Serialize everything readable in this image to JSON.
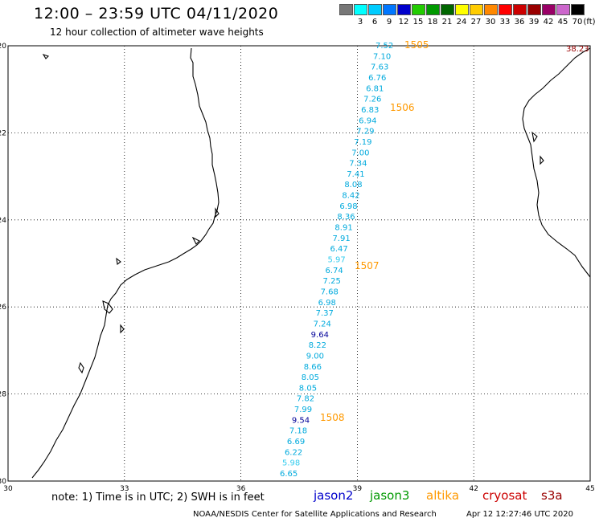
{
  "header": {
    "title": "12:00 – 23:59 UTC 04/11/2020",
    "subtitle": "12 hour collection of altimeter wave heights"
  },
  "legend": {
    "swatches": [
      {
        "color": "#777777",
        "label": ""
      },
      {
        "color": "#00ffff",
        "label": "3"
      },
      {
        "color": "#00ccff",
        "label": "6"
      },
      {
        "color": "#0077ff",
        "label": "9"
      },
      {
        "color": "#0000cc",
        "label": "12"
      },
      {
        "color": "#22cc00",
        "label": "15"
      },
      {
        "color": "#009900",
        "label": "18"
      },
      {
        "color": "#006600",
        "label": "21"
      },
      {
        "color": "#ffff00",
        "label": "24"
      },
      {
        "color": "#ffcc00",
        "label": "27"
      },
      {
        "color": "#ff8800",
        "label": "30"
      },
      {
        "color": "#ff0000",
        "label": "33"
      },
      {
        "color": "#cc0000",
        "label": "36"
      },
      {
        "color": "#990000",
        "label": "39"
      },
      {
        "color": "#990066",
        "label": "42"
      },
      {
        "color": "#cc66cc",
        "label": "45"
      },
      {
        "color": "#000000",
        "label": "70"
      }
    ],
    "unit": "(ft)"
  },
  "map": {
    "lon_ticks": [
      "30",
      "33",
      "36",
      "39",
      "42",
      "45"
    ],
    "lat_ticks": [
      "-20",
      "-22",
      "-24",
      "-26",
      "-28",
      "-30"
    ],
    "lon_range": [
      30,
      45
    ],
    "lat_range": [
      -20,
      -30
    ],
    "corner_value": {
      "text": "38.23",
      "color": "#990000"
    },
    "passes": [
      {
        "label": "1505",
        "lat": -20.0
      },
      {
        "label": "1506",
        "lat": -21.4
      },
      {
        "label": "1507",
        "lat": -25.1
      },
      {
        "label": "1508",
        "lat": -28.6
      }
    ],
    "wave_heights": [
      {
        "value": "7.52",
        "color": "#00aadd"
      },
      {
        "value": "7.10",
        "color": "#00aadd"
      },
      {
        "value": "7.63",
        "color": "#00aadd"
      },
      {
        "value": "6.76",
        "color": "#00aadd"
      },
      {
        "value": "6.81",
        "color": "#00aadd"
      },
      {
        "value": "7.26",
        "color": "#00aadd"
      },
      {
        "value": "6.83",
        "color": "#00aadd"
      },
      {
        "value": "6.94",
        "color": "#00aadd"
      },
      {
        "value": "7.29",
        "color": "#00aadd"
      },
      {
        "value": "7.19",
        "color": "#00aadd"
      },
      {
        "value": "7.00",
        "color": "#00aadd"
      },
      {
        "value": "7.34",
        "color": "#00aadd"
      },
      {
        "value": "7.41",
        "color": "#00aadd"
      },
      {
        "value": "8.08",
        "color": "#00aadd"
      },
      {
        "value": "8.42",
        "color": "#00aadd"
      },
      {
        "value": "6.98",
        "color": "#00aadd"
      },
      {
        "value": "8.36",
        "color": "#00aadd"
      },
      {
        "value": "8.91",
        "color": "#00aadd"
      },
      {
        "value": "7.91",
        "color": "#00aadd"
      },
      {
        "value": "6.47",
        "color": "#00aadd"
      },
      {
        "value": "5.97",
        "color": "#33ccee"
      },
      {
        "value": "6.74",
        "color": "#00aadd"
      },
      {
        "value": "7.25",
        "color": "#00aadd"
      },
      {
        "value": "7.68",
        "color": "#00aadd"
      },
      {
        "value": "6.98",
        "color": "#00aadd"
      },
      {
        "value": "7.37",
        "color": "#00aadd"
      },
      {
        "value": "7.24",
        "color": "#00aadd"
      },
      {
        "value": "9.64",
        "color": "#000099"
      },
      {
        "value": "8.22",
        "color": "#00aadd"
      },
      {
        "value": "9.00",
        "color": "#00aadd"
      },
      {
        "value": "8.66",
        "color": "#00aadd"
      },
      {
        "value": "8.05",
        "color": "#00aadd"
      },
      {
        "value": "8.05",
        "color": "#00aadd"
      },
      {
        "value": "7.82",
        "color": "#00aadd"
      },
      {
        "value": "7.99",
        "color": "#00aadd"
      },
      {
        "value": "9.54",
        "color": "#000099"
      },
      {
        "value": "7.18",
        "color": "#00aadd"
      },
      {
        "value": "6.69",
        "color": "#00aadd"
      },
      {
        "value": "6.22",
        "color": "#00aadd"
      },
      {
        "value": "5.98",
        "color": "#33ccee"
      },
      {
        "value": "6.65",
        "color": "#00aadd"
      }
    ]
  },
  "footer": {
    "note": "note: 1) Time is in UTC; 2) SWH is in feet",
    "satellites": [
      {
        "name": "jason2",
        "color": "#0000cc"
      },
      {
        "name": "jason3",
        "color": "#009900"
      },
      {
        "name": "altika",
        "color": "#ff9900"
      },
      {
        "name": "cryosat",
        "color": "#cc0000"
      },
      {
        "name": "s3a",
        "color": "#990000"
      }
    ],
    "credit": "NOAA/NESDIS Center for Satellite Applications and Research",
    "timestamp": "Apr 12 12:27:46 UTC 2020"
  }
}
